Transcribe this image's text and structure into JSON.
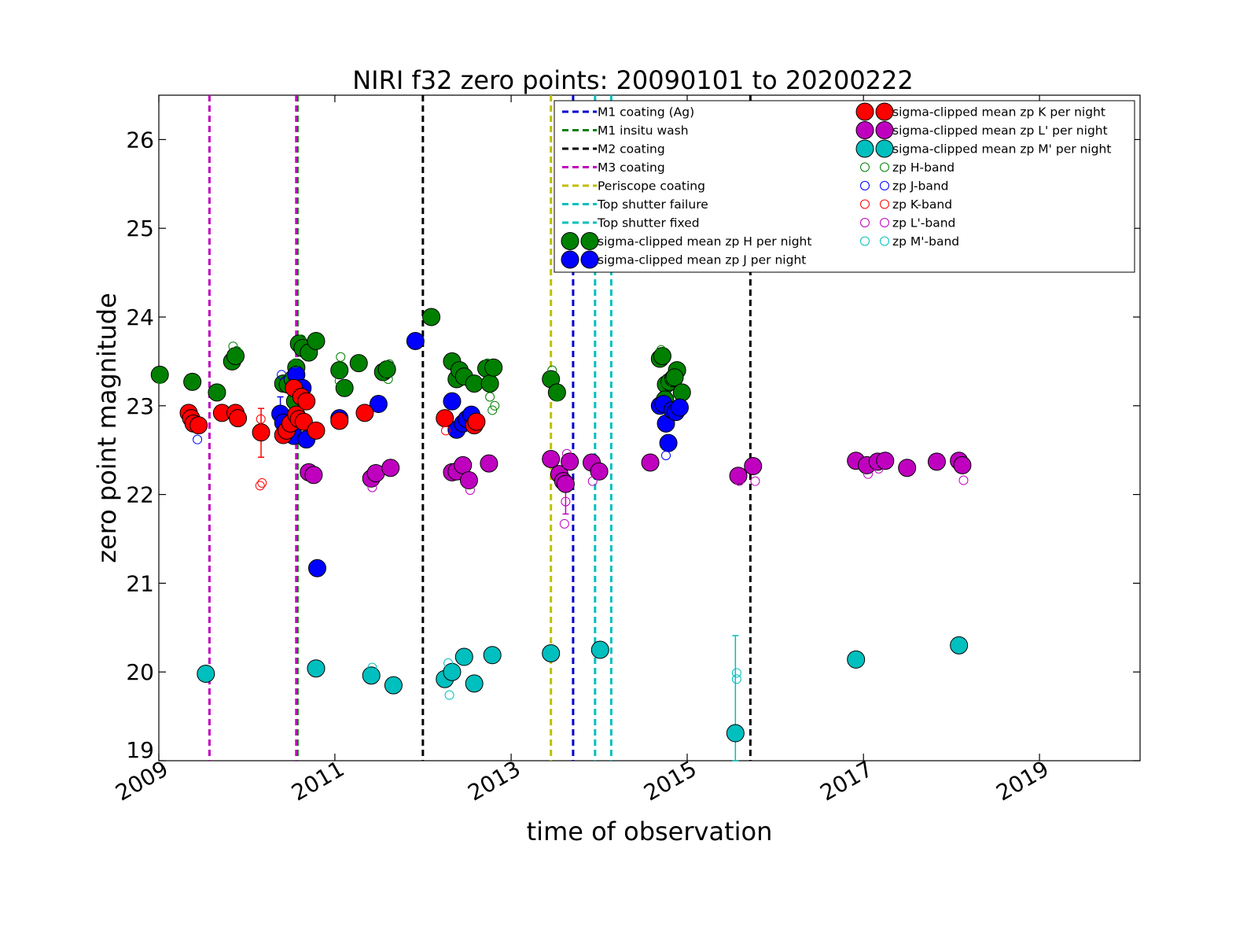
{
  "chart_data": {
    "type": "scatter",
    "title": "NIRI f32 zero points: 20090101 to 20200222",
    "xlabel": "time of observation",
    "ylabel": "zero point magnitude",
    "xlim": [
      "2009-01-01",
      "2020-02-22"
    ],
    "ylim": [
      19,
      26.5
    ],
    "x_ticks": [
      "2009",
      "2011",
      "2013",
      "2015",
      "2017",
      "2019"
    ],
    "y_ticks": [
      19,
      20,
      21,
      22,
      23,
      24,
      25,
      26
    ],
    "grid": false,
    "legend_position": "top-right",
    "vlines": [
      {
        "name": "M1 coating (Ag)",
        "color": "#0000cc",
        "x": [
          "2013-09-15"
        ]
      },
      {
        "name": "M1 insitu wash",
        "color": "#007f00",
        "x": [
          "2010-07-30"
        ]
      },
      {
        "name": "M2 coating",
        "color": "#000000",
        "x": [
          "2012-01-01",
          "2015-09-20"
        ]
      },
      {
        "name": "M3 coating",
        "color": "#bf00bf",
        "x": [
          "2009-07-30",
          "2010-07-25"
        ]
      },
      {
        "name": "Periscope coating",
        "color": "#bfbf00",
        "x": [
          "2013-06-15"
        ]
      },
      {
        "name": "Top shutter failure",
        "color": "#00bfbf",
        "x": [
          "2013-12-15"
        ]
      },
      {
        "name": "Top shutter fixed",
        "color": "#00bfbf",
        "x": [
          "2014-02-20"
        ]
      }
    ],
    "series": [
      {
        "name": "sigma-clipped mean zp H per night",
        "color": "#008000",
        "x": [
          "2009-01-05",
          "2009-05-20",
          "2009-08-30",
          "2009-11-01",
          "2009-11-15",
          "2010-06-01",
          "2010-06-20",
          "2010-07-10",
          "2010-07-25",
          "2010-08-05",
          "2010-08-20",
          "2010-09-15",
          "2010-10-15",
          "2011-01-20",
          "2011-02-10",
          "2011-04-10",
          "2011-07-20",
          "2011-08-05",
          "2012-02-05",
          "2012-05-01",
          "2012-05-20",
          "2012-06-01",
          "2012-06-20",
          "2012-08-01",
          "2012-09-20",
          "2012-10-05",
          "2012-10-20",
          "2013-06-15",
          "2013-07-10",
          "2014-09-10",
          "2014-09-20",
          "2014-10-05",
          "2014-10-20",
          "2014-11-05",
          "2014-11-20",
          "2014-11-10",
          "2014-12-10",
          "2014-10-01",
          "2010-08-10",
          "2010-07-20"
        ],
        "y": [
          23.35,
          23.27,
          23.15,
          23.5,
          23.56,
          23.25,
          23.24,
          23.3,
          23.43,
          23.7,
          23.65,
          23.6,
          23.73,
          23.4,
          23.2,
          23.48,
          23.38,
          23.41,
          24.0,
          23.5,
          23.3,
          23.4,
          23.33,
          23.25,
          23.42,
          23.25,
          23.43,
          23.3,
          23.15,
          23.53,
          23.56,
          23.24,
          23.27,
          23.31,
          23.4,
          23.32,
          23.15,
          23.07,
          23.15,
          23.05
        ]
      },
      {
        "name": "sigma-clipped mean zp J per night",
        "color": "#0000ff",
        "x": [
          "2010-05-20",
          "2010-06-01",
          "2010-07-15",
          "2010-07-25",
          "2010-08-20",
          "2010-09-05",
          "2010-10-20",
          "2011-01-20",
          "2011-07-01",
          "2011-12-01",
          "2012-05-01",
          "2012-05-20",
          "2012-06-15",
          "2012-07-01",
          "2012-07-20",
          "2014-09-10",
          "2014-09-25",
          "2014-10-05",
          "2014-10-15",
          "2014-11-01",
          "2014-11-15",
          "2014-12-01"
        ],
        "y": [
          22.91,
          22.81,
          22.66,
          23.35,
          23.2,
          22.62,
          21.17,
          22.86,
          23.02,
          23.73,
          23.05,
          22.73,
          22.8,
          22.85,
          22.9,
          23.0,
          23.02,
          22.8,
          22.58,
          22.95,
          22.93,
          22.98
        ]
      },
      {
        "name": "sigma-clipped mean zp K per night",
        "color": "#ff0000",
        "x": [
          "2009-05-05",
          "2009-05-15",
          "2009-05-25",
          "2009-06-15",
          "2009-09-20",
          "2009-11-15",
          "2009-11-25",
          "2010-03-01",
          "2010-06-01",
          "2010-06-15",
          "2010-07-01",
          "2010-07-15",
          "2010-07-25",
          "2010-08-05",
          "2010-08-15",
          "2010-08-25",
          "2010-09-05",
          "2010-10-15",
          "2011-01-20",
          "2011-05-05",
          "2012-04-01",
          "2012-08-01",
          "2012-08-10"
        ],
        "y": [
          22.92,
          22.86,
          22.8,
          22.78,
          22.92,
          22.92,
          22.86,
          22.7,
          22.67,
          22.72,
          22.8,
          23.2,
          22.9,
          22.85,
          23.1,
          22.82,
          23.05,
          22.72,
          22.83,
          22.92,
          22.86,
          22.78,
          22.82
        ]
      },
      {
        "name": "sigma-clipped mean zp L' per night",
        "color": "#bf00bf",
        "x": [
          "2010-09-15",
          "2010-10-05",
          "2011-06-01",
          "2011-06-20",
          "2011-08-20",
          "2012-05-01",
          "2012-05-20",
          "2012-06-15",
          "2012-07-10",
          "2012-10-01",
          "2013-06-15",
          "2013-07-20",
          "2013-08-05",
          "2013-08-15",
          "2013-09-01",
          "2013-12-01",
          "2014-01-01",
          "2014-08-01",
          "2015-08-01",
          "2015-10-01",
          "2016-12-01",
          "2017-01-15",
          "2017-03-01",
          "2017-04-01",
          "2017-07-01",
          "2017-11-01",
          "2018-02-01",
          "2018-02-15"
        ],
        "y": [
          22.25,
          22.22,
          22.18,
          22.24,
          22.3,
          22.25,
          22.26,
          22.33,
          22.16,
          22.35,
          22.4,
          22.23,
          22.15,
          22.12,
          22.37,
          22.36,
          22.26,
          22.36,
          22.21,
          22.32,
          22.38,
          22.33,
          22.37,
          22.38,
          22.3,
          22.37,
          22.38,
          22.33
        ]
      },
      {
        "name": "sigma-clipped mean zp M' per night",
        "color": "#00bfbf",
        "x": [
          "2009-07-15",
          "2010-10-15",
          "2011-06-01",
          "2011-09-01",
          "2012-04-01",
          "2012-05-01",
          "2012-06-20",
          "2012-08-01",
          "2012-10-15",
          "2013-06-15",
          "2014-01-05",
          "2015-07-20",
          "2016-12-01",
          "2018-02-01"
        ],
        "y": [
          19.98,
          20.04,
          19.96,
          19.85,
          19.92,
          20.0,
          20.17,
          19.87,
          20.19,
          20.21,
          20.25,
          19.31,
          20.14,
          20.3
        ]
      },
      {
        "name": "zp H-band",
        "color": "#008000",
        "hollow": true,
        "x": [
          "2009-01-05",
          "2009-11-05",
          "2009-11-20",
          "2010-08-15",
          "2010-07-20",
          "2011-01-20",
          "2011-01-25",
          "2011-08-10",
          "2011-08-15",
          "2012-09-25",
          "2012-10-05",
          "2012-10-15",
          "2012-10-25",
          "2013-06-20",
          "2014-09-15",
          "2014-09-20",
          "2014-10-05",
          "2013-07-10"
        ],
        "y": [
          23.3,
          23.67,
          23.62,
          23.75,
          23.48,
          23.28,
          23.55,
          23.3,
          23.47,
          23.48,
          23.1,
          22.95,
          23.0,
          23.4,
          23.63,
          23.6,
          23.25,
          23.1
        ]
      },
      {
        "name": "zp J-band",
        "color": "#0000ff",
        "hollow": true,
        "x": [
          "2009-06-10",
          "2010-05-25",
          "2014-10-05",
          "2014-11-05"
        ],
        "y": [
          22.62,
          23.35,
          22.44,
          22.9
        ]
      },
      {
        "name": "zp K-band",
        "color": "#ff0000",
        "hollow": true,
        "x": [
          "2010-02-25",
          "2010-03-05",
          "2010-02-28",
          "2012-04-05"
        ],
        "y": [
          22.1,
          22.13,
          22.85,
          22.72
        ]
      },
      {
        "name": "zp L'-band",
        "color": "#bf00bf",
        "hollow": true,
        "x": [
          "2011-06-05",
          "2012-07-15",
          "2013-08-10",
          "2013-08-15",
          "2013-08-20",
          "2013-12-05",
          "2015-08-05",
          "2015-10-10",
          "2017-01-20",
          "2017-03-05",
          "2018-02-20"
        ],
        "y": [
          22.08,
          22.05,
          21.67,
          21.92,
          22.46,
          22.15,
          22.15,
          22.15,
          22.23,
          22.29,
          22.16
        ]
      },
      {
        "name": "zp M'-band",
        "color": "#00bfbf",
        "hollow": true,
        "x": [
          "2011-06-05",
          "2012-04-15",
          "2012-04-20",
          "2015-07-25",
          "2015-07-25"
        ],
        "y": [
          20.05,
          20.1,
          19.74,
          19.92,
          19.99
        ]
      }
    ],
    "error_bars": [
      {
        "color": "#ff0000",
        "x": "2010-03-01",
        "y_low": 22.42,
        "y_high": 22.97
      },
      {
        "color": "#bf00bf",
        "x": "2013-08-15",
        "y_low": 21.78,
        "y_high": 22.14
      },
      {
        "color": "#00bfbf",
        "x": "2015-07-20",
        "y_low": 19.0,
        "y_high": 20.41
      },
      {
        "color": "#0000ff",
        "x": "2010-05-20",
        "y_low": 22.7,
        "y_high": 23.1
      }
    ]
  }
}
